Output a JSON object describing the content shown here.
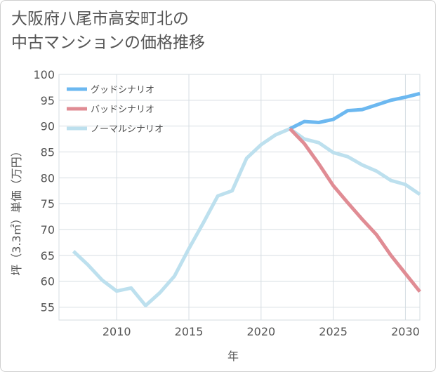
{
  "chart_data": {
    "type": "line",
    "title_lines": [
      "大阪府八尾市高安町北の",
      "中古マンションの価格推移"
    ],
    "xlabel": "年",
    "ylabel": "坪（3.3㎡）単価（万円）",
    "xlim": [
      2006,
      2031
    ],
    "ylim": [
      52.5,
      100
    ],
    "x_ticks": [
      2010,
      2015,
      2020,
      2025,
      2030
    ],
    "y_ticks": [
      55,
      60,
      65,
      70,
      75,
      80,
      85,
      90,
      95,
      100
    ],
    "grid": true,
    "legend_position": "top-left",
    "series": [
      {
        "name": "グッドシナリオ",
        "color": "#6cb8f0",
        "points": [
          [
            2022,
            89.5
          ],
          [
            2023,
            90.9
          ],
          [
            2024,
            90.7
          ],
          [
            2025,
            91.3
          ],
          [
            2026,
            93.0
          ],
          [
            2027,
            93.2
          ],
          [
            2028,
            94.1
          ],
          [
            2029,
            95.0
          ],
          [
            2030,
            95.6
          ],
          [
            2031,
            96.3
          ]
        ]
      },
      {
        "name": "バッドシナリオ",
        "color": "#e08c94",
        "points": [
          [
            2022,
            89.5
          ],
          [
            2023,
            86.6
          ],
          [
            2024,
            82.7
          ],
          [
            2025,
            78.5
          ],
          [
            2026,
            75.2
          ],
          [
            2027,
            72.0
          ],
          [
            2028,
            69.0
          ],
          [
            2029,
            65.0
          ],
          [
            2030,
            61.5
          ],
          [
            2031,
            58.0
          ]
        ]
      },
      {
        "name": "ノーマルシナリオ",
        "color": "#bde0ee",
        "points": [
          [
            2007,
            65.8
          ],
          [
            2008,
            63.2
          ],
          [
            2009,
            60.2
          ],
          [
            2010,
            58.1
          ],
          [
            2011,
            58.7
          ],
          [
            2012,
            55.3
          ],
          [
            2013,
            57.8
          ],
          [
            2014,
            61.0
          ],
          [
            2015,
            66.3
          ],
          [
            2016,
            71.3
          ],
          [
            2017,
            76.5
          ],
          [
            2018,
            77.5
          ],
          [
            2019,
            83.8
          ],
          [
            2020,
            86.4
          ],
          [
            2021,
            88.3
          ],
          [
            2022,
            89.5
          ],
          [
            2023,
            87.5
          ],
          [
            2024,
            86.8
          ],
          [
            2025,
            84.9
          ],
          [
            2026,
            84.1
          ],
          [
            2027,
            82.5
          ],
          [
            2028,
            81.3
          ],
          [
            2029,
            79.5
          ],
          [
            2030,
            78.7
          ],
          [
            2031,
            76.8
          ]
        ]
      }
    ]
  }
}
